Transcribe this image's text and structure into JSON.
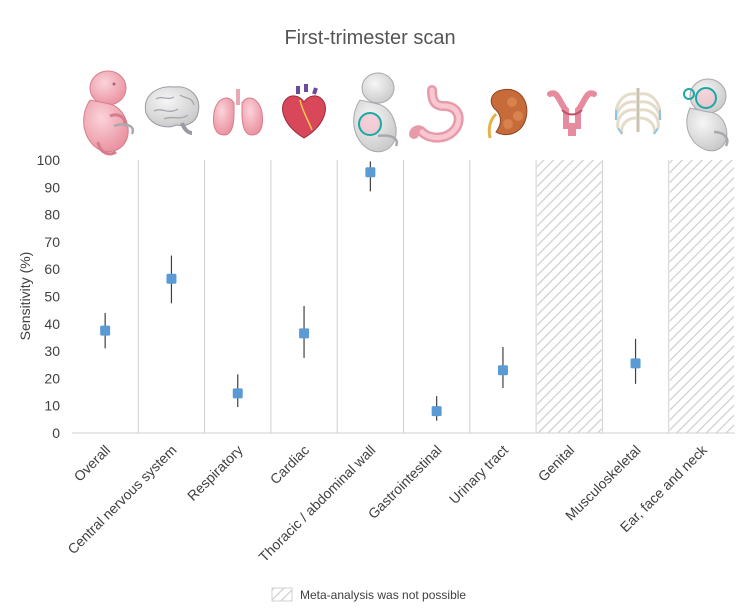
{
  "chart_data": {
    "type": "scatter",
    "title": "First-trimester scan",
    "ylabel": "Sensitivity (%)",
    "xlabel": "",
    "ylim": [
      0,
      100
    ],
    "yticks": [
      0,
      10,
      20,
      30,
      40,
      50,
      60,
      70,
      80,
      90,
      100
    ],
    "categories": [
      "Overall",
      "Central nervous system",
      "Respiratory",
      "Cardiac",
      "Thoracic / abdominal wall",
      "Gastrointestinal",
      "Urinary tract",
      "Genital",
      "Musculoskeletal",
      "Ear, face and neck"
    ],
    "series": [
      {
        "values": [
          37.5,
          56.5,
          14.5,
          36.5,
          95.5,
          8.0,
          23.0,
          null,
          25.5,
          null
        ],
        "ci_lower": [
          31.0,
          47.5,
          9.5,
          27.5,
          88.5,
          4.5,
          16.5,
          null,
          18.0,
          null
        ],
        "ci_upper": [
          44.0,
          65.0,
          21.5,
          46.5,
          99.5,
          13.5,
          31.5,
          null,
          34.5,
          null
        ]
      }
    ],
    "not_possible": [
      false,
      false,
      false,
      false,
      false,
      false,
      false,
      true,
      false,
      true
    ],
    "legend": {
      "label": "Meta-analysis was not possible",
      "position": "bottom-center"
    },
    "grid": "vertical separators",
    "colors": {
      "marker": "#5b9bd5",
      "errorbar": "#404040",
      "hatch": "#c8c8c8",
      "separator": "#d0d0d0"
    },
    "icons": [
      "fetus-icon",
      "brain-icon",
      "lungs-icon",
      "heart-icon",
      "fetus-abdomen-icon",
      "stomach-icon",
      "kidney-icon",
      "uterus-icon",
      "ribcage-icon",
      "fetus-face-icon"
    ]
  }
}
